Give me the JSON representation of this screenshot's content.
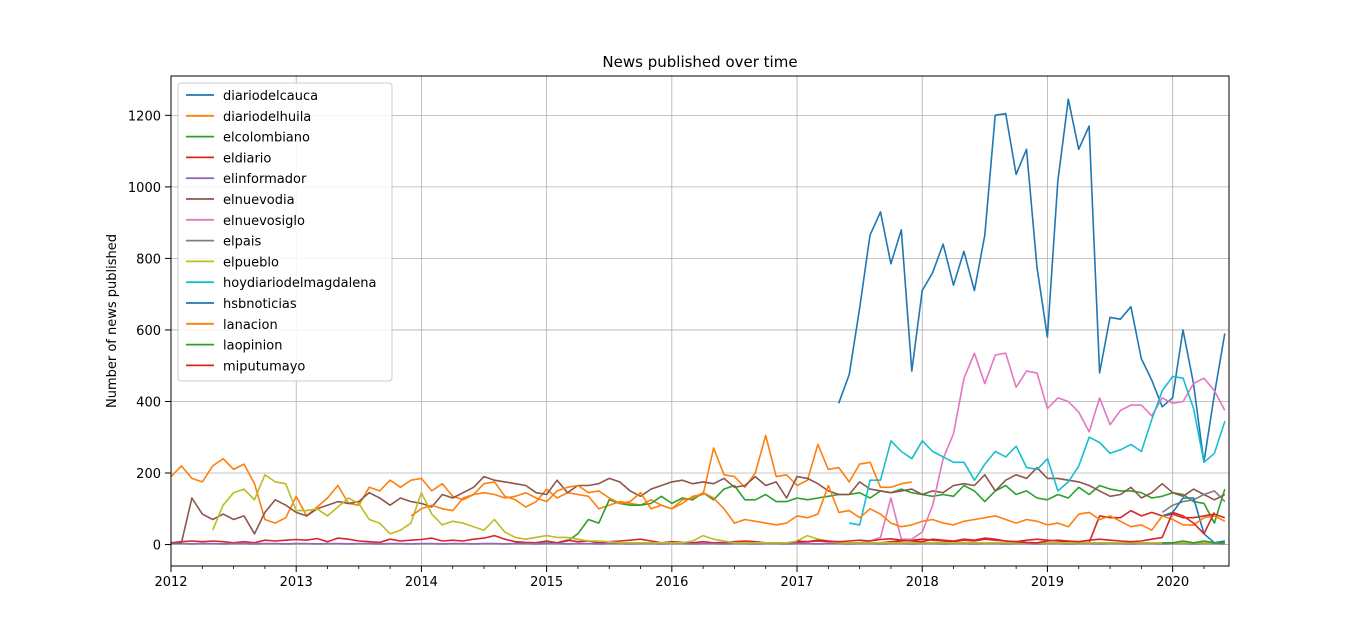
{
  "chart_data": {
    "type": "line",
    "title": "News published over time",
    "xlabel": "",
    "ylabel": "Number of news published",
    "xlim": [
      2012.0,
      2020.45
    ],
    "ylim": [
      -60,
      1310
    ],
    "xticks": [
      2012,
      2013,
      2014,
      2015,
      2016,
      2017,
      2018,
      2019,
      2020
    ],
    "yticks": [
      0,
      200,
      400,
      600,
      800,
      1000,
      1200
    ],
    "grid": true,
    "legend_position": "top-left",
    "series": [
      {
        "name": "diariodelcauca",
        "color": "#1f77b4",
        "start": 2017.333,
        "values": [
          395,
          475,
          660,
          865,
          930,
          785,
          880,
          485,
          710,
          760,
          840,
          725,
          820,
          710,
          865,
          1200,
          1205,
          1035,
          1105,
          775,
          580,
          1015,
          1245,
          1105,
          1170,
          480,
          635,
          630,
          665,
          520,
          460,
          385,
          410,
          600,
          450,
          230,
          420,
          590
        ]
      },
      {
        "name": "diariodelhuila",
        "color": "#ff7f0e",
        "start": 2012.0,
        "values": [
          190,
          220,
          185,
          175,
          220,
          240,
          210,
          225,
          170,
          70,
          60,
          75,
          135,
          80,
          105,
          130,
          165,
          115,
          110,
          160,
          150,
          180,
          160,
          180,
          185,
          150,
          170,
          135,
          125,
          140,
          170,
          175,
          135,
          125,
          105,
          120,
          155,
          130,
          145,
          140,
          135,
          100,
          110,
          120,
          115,
          110,
          125,
          110,
          100,
          115,
          135,
          140,
          270,
          195,
          190,
          160,
          200,
          305,
          190,
          195,
          165,
          180,
          280,
          210,
          215,
          175,
          225,
          230,
          160,
          160,
          170,
          175
        ]
      },
      {
        "name": "elcolombiano",
        "color": "#2ca02c",
        "start": 2014.75,
        "values": [
          5,
          5,
          5,
          8,
          5,
          10,
          30,
          70,
          60,
          125,
          115,
          110,
          110,
          115,
          135,
          115,
          130,
          125,
          145,
          125,
          155,
          165,
          125,
          125,
          140,
          120,
          120,
          130,
          125,
          130,
          135,
          140,
          140,
          145,
          130,
          150,
          145,
          155,
          145,
          140,
          135,
          140,
          135,
          165,
          150,
          120,
          150,
          165,
          140,
          150,
          130,
          125,
          140,
          130,
          160,
          140,
          165,
          155,
          150,
          150,
          145,
          130,
          135,
          145,
          140,
          120,
          115,
          60,
          155
        ]
      },
      {
        "name": "eldiario",
        "color": "#d62728",
        "start": 2012.0,
        "values": [
          5,
          8,
          10,
          8,
          10,
          8,
          5,
          8,
          5,
          12,
          10,
          12,
          14,
          12,
          17,
          8,
          18,
          15,
          10,
          8,
          6,
          15,
          10,
          12,
          14,
          18,
          10,
          12,
          10,
          15,
          18,
          25,
          15,
          8,
          6,
          5,
          10,
          5,
          12,
          8,
          10,
          5,
          8,
          10,
          12,
          15,
          10,
          5,
          8,
          6,
          5,
          8,
          5,
          6,
          8,
          10,
          8,
          5,
          4,
          5,
          6,
          8,
          10,
          8,
          6,
          5,
          5,
          5,
          5,
          8,
          10,
          12,
          15,
          12,
          10,
          8,
          12,
          10,
          15,
          12,
          10,
          8,
          12,
          15,
          12,
          10,
          8,
          5,
          6,
          80,
          75,
          75,
          95,
          80,
          90,
          80,
          85,
          75,
          75,
          80,
          85,
          75,
          75,
          70,
          40,
          95,
          65
        ]
      },
      {
        "name": "elinformador",
        "color": "#9467bd",
        "start": 2012.0,
        "values": [
          3,
          3,
          2,
          3,
          3,
          2,
          3,
          3,
          2,
          3,
          3,
          2,
          3,
          3,
          2,
          3,
          3,
          2,
          3,
          3,
          2,
          3,
          3,
          2,
          3,
          3,
          2,
          3,
          3,
          2,
          3,
          3,
          2,
          3,
          3,
          2,
          3,
          3,
          2,
          3,
          3,
          2,
          3,
          3,
          2,
          3,
          3,
          2,
          3,
          3,
          2,
          3,
          3,
          2,
          3,
          3,
          2,
          3,
          3,
          2,
          3,
          3,
          2,
          3,
          3,
          2,
          3,
          3,
          2,
          3,
          3,
          2,
          3,
          3,
          2,
          3,
          3,
          2,
          3,
          3,
          2,
          3,
          3,
          2,
          3,
          3,
          2,
          3,
          3,
          2,
          3,
          3,
          2,
          3,
          3,
          2,
          3,
          3,
          2,
          3,
          3,
          2,
          3,
          3,
          5,
          15,
          20
        ]
      },
      {
        "name": "elnuevodia",
        "color": "#8c564b",
        "start": 2012.0,
        "values": [
          5,
          5,
          130,
          85,
          70,
          85,
          70,
          80,
          30,
          90,
          125,
          110,
          90,
          80,
          100,
          110,
          120,
          115,
          120,
          145,
          130,
          110,
          130,
          120,
          115,
          105,
          140,
          130,
          145,
          160,
          190,
          180,
          175,
          170,
          165,
          145,
          140,
          180,
          145,
          165,
          165,
          170,
          185,
          175,
          150,
          135,
          155,
          165,
          175,
          180,
          170,
          175,
          170,
          185,
          160,
          165,
          190,
          165,
          175,
          130,
          190,
          185,
          170,
          150,
          140,
          140,
          175,
          155,
          150,
          145,
          150,
          155,
          140,
          150,
          145,
          165,
          170,
          165,
          195,
          150,
          180,
          195,
          185,
          215,
          185,
          185,
          180,
          175,
          165,
          150,
          135,
          140,
          160,
          130,
          145,
          170,
          145,
          135,
          155,
          140,
          125,
          140,
          125,
          120,
          120,
          120,
          120
        ]
      },
      {
        "name": "elnuevosiglo",
        "color": "#e377c2",
        "start": 2017.5,
        "values": [
          5,
          10,
          20,
          130,
          15,
          15,
          35,
          110,
          240,
          310,
          465,
          535,
          450,
          530,
          535,
          440,
          485,
          480,
          380,
          410,
          400,
          370,
          315,
          410,
          335,
          375,
          390,
          390,
          360,
          410,
          395,
          400,
          450,
          465,
          430,
          375,
          460
        ]
      },
      {
        "name": "elpais",
        "color": "#7f7f7f",
        "start": 2019.917,
        "values": [
          90,
          110,
          120,
          125,
          140,
          150,
          120
        ]
      },
      {
        "name": "elpueblo",
        "color": "#bcbd22",
        "start": 2012.333,
        "values": [
          40,
          110,
          145,
          155,
          125,
          195,
          175,
          170,
          95,
          95,
          100,
          80,
          105,
          130,
          115,
          70,
          60,
          30,
          40,
          60,
          145,
          85,
          55,
          65,
          60,
          50,
          40,
          70,
          35,
          20,
          15,
          20,
          25,
          20,
          20,
          15,
          10,
          10,
          8,
          5,
          5,
          5,
          5,
          5,
          5,
          5,
          10,
          25,
          15,
          10,
          5,
          5,
          5,
          5,
          5,
          5,
          10,
          25,
          15,
          10,
          5,
          5,
          5,
          5,
          5,
          5,
          5,
          5,
          5,
          5,
          5,
          5,
          5,
          5,
          5,
          5,
          5,
          5,
          5,
          5,
          5,
          5,
          5,
          5,
          5,
          5,
          5,
          5,
          5,
          5,
          5,
          5,
          5,
          5,
          5,
          5,
          5,
          5,
          5,
          5,
          5,
          5
        ]
      },
      {
        "name": "hoydiariodelmagdalena",
        "color": "#17becf",
        "start": 2017.417,
        "values": [
          60,
          55,
          180,
          180,
          290,
          260,
          240,
          290,
          260,
          245,
          230,
          230,
          180,
          225,
          260,
          245,
          275,
          215,
          210,
          240,
          150,
          175,
          220,
          300,
          285,
          255,
          265,
          280,
          260,
          350,
          430,
          470,
          465,
          380,
          230,
          255,
          345
        ]
      },
      {
        "name": "hsbnoticias",
        "color": "#1f77b4",
        "start": 2019.917,
        "values": [
          80,
          90,
          130,
          130,
          30,
          5,
          10
        ]
      },
      {
        "name": "lanacion",
        "color": "#ff7f0e",
        "start": 2013.917,
        "values": [
          80,
          100,
          110,
          100,
          95,
          130,
          140,
          145,
          140,
          130,
          135,
          145,
          130,
          120,
          150,
          160,
          165,
          145,
          150,
          130,
          115,
          120,
          145,
          100,
          110,
          100,
          125,
          130,
          145,
          130,
          100,
          60,
          70,
          65,
          60,
          55,
          60,
          80,
          75,
          85,
          165,
          90,
          95,
          75,
          100,
          85,
          60,
          50,
          55,
          65,
          70,
          60,
          55,
          65,
          70,
          75,
          80,
          70,
          60,
          70,
          65,
          55,
          60,
          50,
          85,
          90,
          70,
          80,
          65,
          50,
          55,
          40,
          80,
          70,
          55,
          55,
          75,
          80,
          65,
          75,
          70,
          60,
          50,
          30,
          100,
          80,
          60,
          55,
          90,
          60,
          80,
          50,
          35,
          85,
          45,
          75
        ]
      },
      {
        "name": "laopinion",
        "color": "#2ca02c",
        "start": 2019.917,
        "values": [
          5,
          5,
          10,
          5,
          10,
          5,
          5
        ]
      },
      {
        "name": "miputumayo",
        "color": "#d62728",
        "start": 2017.0,
        "values": [
          10,
          8,
          12,
          10,
          8,
          10,
          12,
          10,
          14,
          16,
          12,
          10,
          8,
          15,
          12,
          10,
          15,
          12,
          18,
          15,
          10,
          8,
          6,
          5,
          10,
          12,
          10,
          8,
          12,
          15,
          12,
          10,
          8,
          10,
          15,
          20,
          90,
          80,
          60,
          30,
          90
        ]
      }
    ]
  }
}
